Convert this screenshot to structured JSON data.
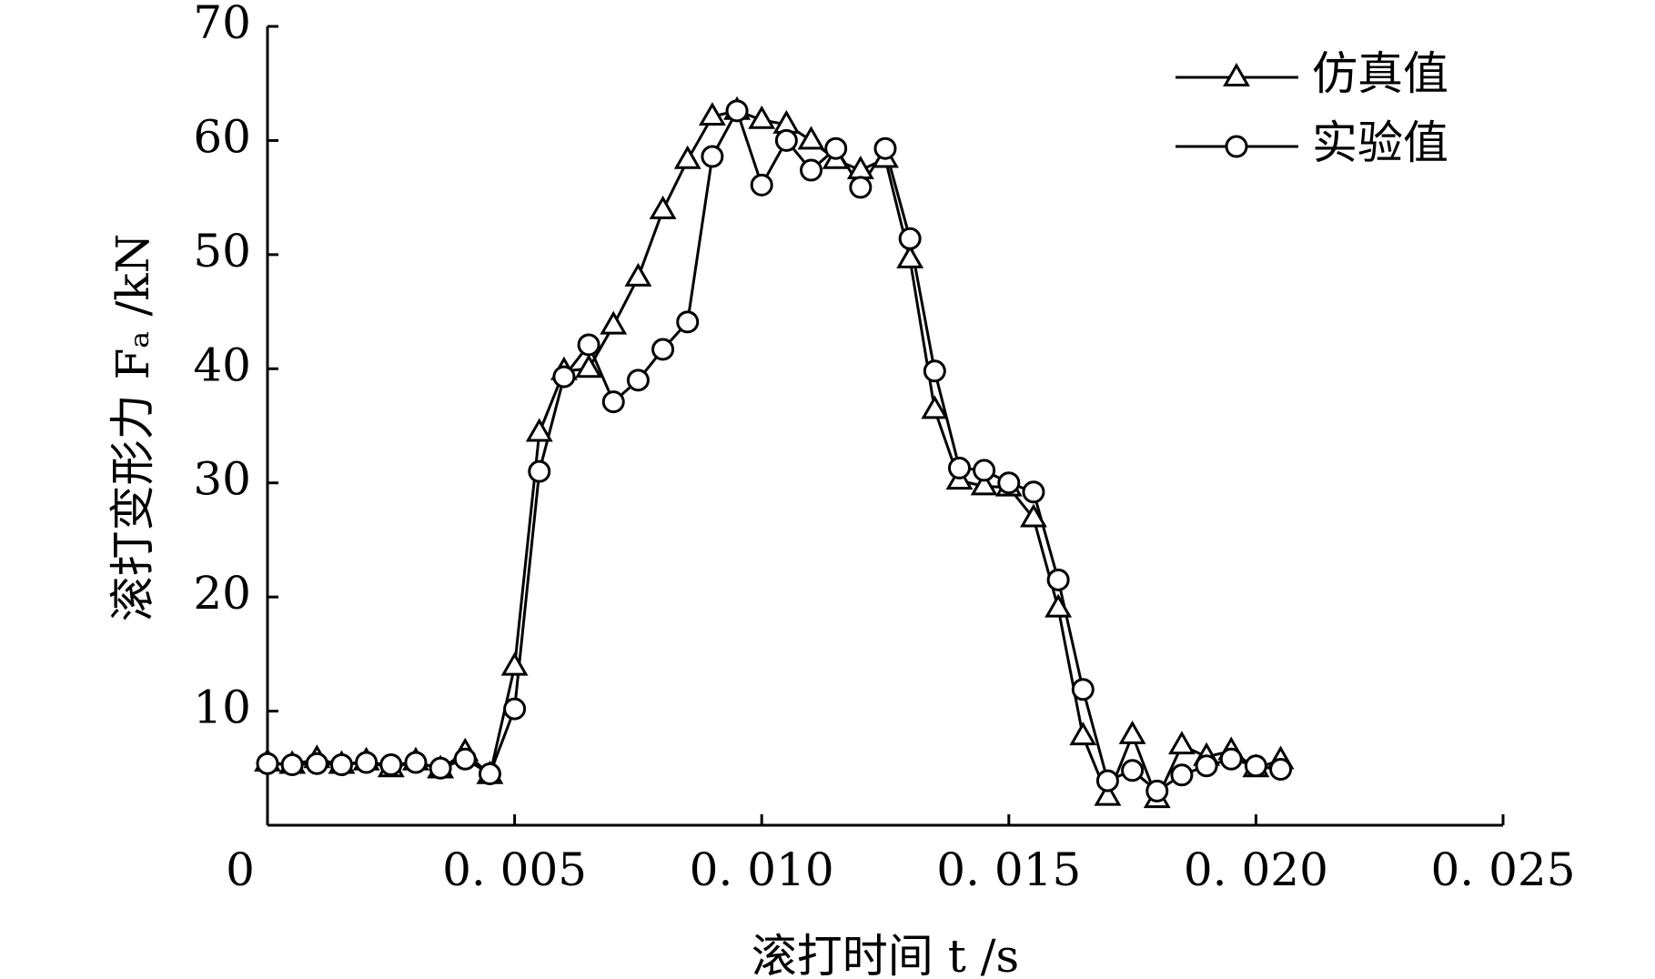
{
  "chart_data": {
    "type": "line",
    "xlabel": "滚打时间 t /s",
    "ylabel": "滚打变形力 Fₐ /kN",
    "x": [
      0,
      0.0005,
      0.001,
      0.0015,
      0.002,
      0.0025,
      0.003,
      0.0035,
      0.004,
      0.0045,
      0.005,
      0.0055,
      0.006,
      0.0065,
      0.007,
      0.0075,
      0.008,
      0.0085,
      0.009,
      0.0095,
      0.01,
      0.0105,
      0.011,
      0.0115,
      0.012,
      0.0125,
      0.013,
      0.0135,
      0.014,
      0.0145,
      0.015,
      0.0155,
      0.016,
      0.0165,
      0.017,
      0.0175,
      0.018,
      0.0185,
      0.019,
      0.0195,
      0.02,
      0.0205
    ],
    "series": [
      {
        "name": "仿真值",
        "color": "#000000",
        "marker": "triangle",
        "values": [
          5.5,
          5.3,
          5.8,
          5.3,
          5.6,
          5.0,
          5.6,
          4.9,
          6.4,
          4.4,
          13.9,
          34.4,
          39.8,
          40.0,
          43.8,
          48.0,
          53.9,
          58.3,
          62.1,
          62.6,
          61.8,
          61.4,
          60.0,
          58.3,
          57.4,
          58.4,
          49.6,
          36.4,
          30.2,
          29.7,
          29.6,
          26.9,
          19.0,
          7.8,
          2.5,
          7.9,
          2.3,
          7.0,
          6.0,
          6.5,
          5.0,
          5.7
        ]
      },
      {
        "name": "实验值",
        "color": "#000000",
        "marker": "circle",
        "values": [
          5.4,
          5.3,
          5.4,
          5.3,
          5.5,
          5.3,
          5.5,
          5.0,
          5.8,
          4.5,
          10.2,
          31.0,
          39.3,
          42.1,
          37.1,
          39.0,
          41.7,
          44.1,
          58.6,
          62.6,
          56.1,
          60.0,
          57.4,
          59.3,
          55.9,
          59.3,
          51.4,
          39.8,
          31.3,
          31.1,
          30.0,
          29.2,
          21.5,
          11.9,
          3.9,
          4.8,
          3.0,
          4.4,
          5.2,
          5.8,
          5.2,
          4.9
        ]
      }
    ],
    "xlim": [
      0,
      0.025
    ],
    "xticks": [
      0,
      {
        "value": 0.005,
        "label": "0. 005"
      },
      {
        "value": 0.01,
        "label": "0. 010"
      },
      {
        "value": 0.015,
        "label": "0. 015"
      },
      {
        "value": 0.02,
        "label": "0. 020"
      },
      {
        "value": 0.025,
        "label": "0. 025"
      }
    ],
    "ylim": [
      0,
      70
    ],
    "yticks": [
      10,
      20,
      30,
      40,
      50,
      60,
      70
    ],
    "grid": false,
    "legend": "top-right"
  }
}
